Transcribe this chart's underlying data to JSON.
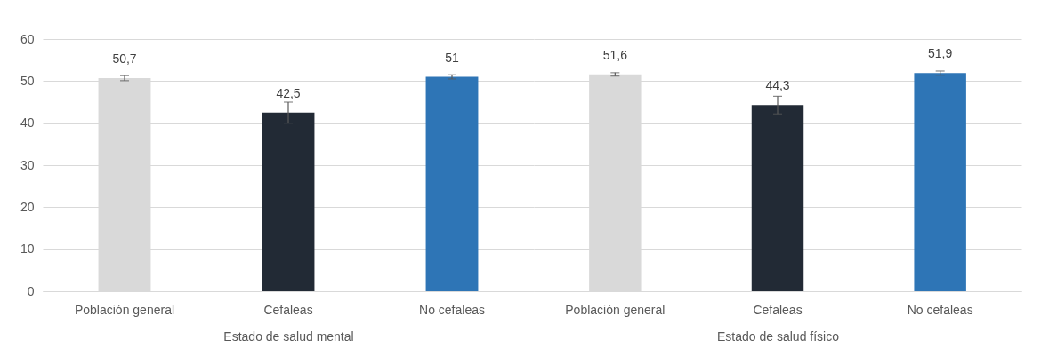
{
  "chart_data": [
    {
      "type": "bar",
      "xlabel": "Estado de salud mental",
      "categories": [
        "Población general",
        "Cefaleas",
        "No cefaleas"
      ],
      "values": [
        50.7,
        42.5,
        51
      ],
      "errors": [
        0.6,
        2.5,
        0.5
      ],
      "colors": [
        "#d9d9d9",
        "#222a35",
        "#2e75b6"
      ],
      "ylim": [
        0,
        60
      ],
      "yticks": [
        0,
        10,
        20,
        30,
        40,
        50,
        60
      ],
      "grid": "y",
      "value_labels": [
        "50,7",
        "42,5",
        "51"
      ]
    },
    {
      "type": "bar",
      "xlabel": "Estado de salud físico",
      "categories": [
        "Población general",
        "Cefaleas",
        "No cefaleas"
      ],
      "values": [
        51.6,
        44.3,
        51.9
      ],
      "errors": [
        0.4,
        2.1,
        0.5
      ],
      "colors": [
        "#d9d9d9",
        "#222a35",
        "#2e75b6"
      ],
      "ylim": [
        0,
        60
      ],
      "yticks": [
        0,
        10,
        20,
        30,
        40,
        50,
        60
      ],
      "grid": "y",
      "value_labels": [
        "51,6",
        "44,3",
        "51,9"
      ],
      "tick_labels": "x"
    }
  ]
}
